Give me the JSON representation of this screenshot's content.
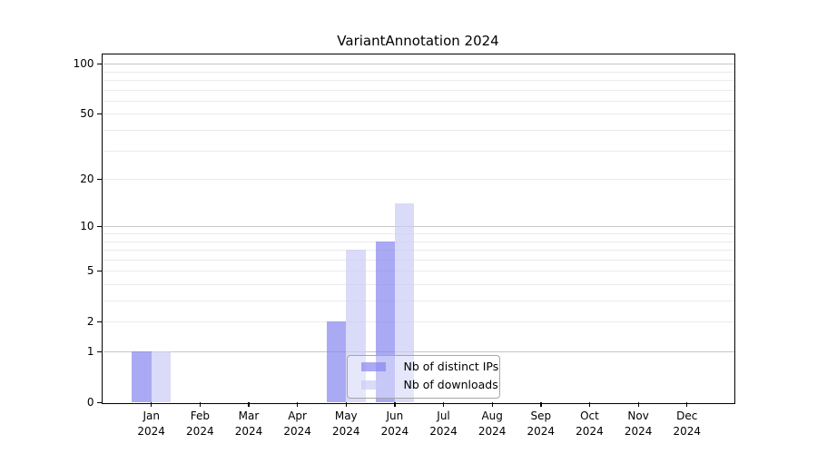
{
  "title": "VariantAnnotation 2024",
  "chart_data": {
    "type": "bar",
    "title": "VariantAnnotation 2024",
    "categories": [
      "Jan 2024",
      "Feb 2024",
      "Mar 2024",
      "Apr 2024",
      "May 2024",
      "Jun 2024",
      "Jul 2024",
      "Aug 2024",
      "Sep 2024",
      "Oct 2024",
      "Nov 2024",
      "Dec 2024"
    ],
    "series": [
      {
        "name": "Nb of distinct IPs",
        "color": "rgba(134,134,240,0.7)",
        "values": [
          1,
          0,
          0,
          0,
          2,
          8,
          0,
          0,
          0,
          0,
          0,
          0
        ]
      },
      {
        "name": "Nb of downloads",
        "color": "rgba(202,202,246,0.7)",
        "values": [
          1,
          0,
          0,
          0,
          7,
          14,
          0,
          0,
          0,
          0,
          0,
          0
        ]
      }
    ],
    "yscale": "log1p",
    "ylim": [
      0,
      113
    ],
    "yticks": [
      0,
      1,
      2,
      5,
      10,
      20,
      50,
      100
    ],
    "major_gridlines": [
      1,
      10,
      100
    ],
    "minor_gridlines": [
      2,
      3,
      4,
      5,
      6,
      7,
      8,
      9,
      20,
      30,
      40,
      50,
      60,
      70,
      80,
      90
    ],
    "grid": true,
    "legend_position": "lower center",
    "xlabel": "",
    "ylabel": ""
  },
  "legend": {
    "items": [
      {
        "label": "Nb of distinct IPs"
      },
      {
        "label": "Nb of downloads"
      }
    ]
  },
  "colors": {
    "background": "#ffffff",
    "spine": "#000000",
    "major_grid": "#c6c6c6",
    "minor_grid": "#ebebeb",
    "legend_border": "#a6a6a6",
    "ips_bar": "rgba(134,134,240,0.7)",
    "downloads_bar": "rgba(202,202,246,0.7)"
  }
}
